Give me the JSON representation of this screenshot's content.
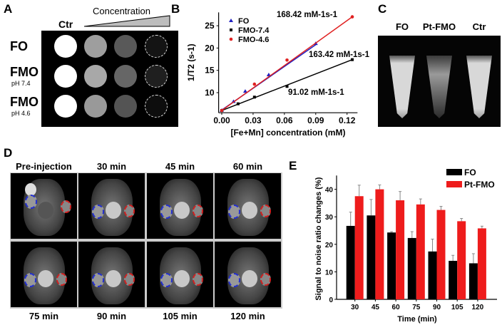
{
  "panels": {
    "A": {
      "label": "A",
      "gradient_label": "Concentration",
      "control_label": "Ctr",
      "rows": [
        {
          "name": "FO",
          "sub": "",
          "intensities": [
            1.0,
            0.62,
            0.35,
            0.08
          ]
        },
        {
          "name": "FMO",
          "sub": "pH 7.4",
          "intensities": [
            1.0,
            0.66,
            0.4,
            0.12
          ]
        },
        {
          "name": "FMO",
          "sub": "pH 4.6",
          "intensities": [
            1.0,
            0.6,
            0.33,
            0.05
          ]
        }
      ]
    },
    "C": {
      "label": "C",
      "tubes": [
        "FO",
        "Pt-FMO",
        "Ctr"
      ]
    },
    "D": {
      "label": "D",
      "top_titles": [
        "Pre-injection",
        "30 min",
        "45 min",
        "60 min"
      ],
      "bottom_titles": [
        "75 min",
        "90 min",
        "105 min",
        "120 min"
      ],
      "roi_colors": {
        "FO": "#2430d0",
        "Pt-FMO": "#d02020"
      }
    },
    "B": {
      "label": "B"
    },
    "E": {
      "label": "E"
    }
  },
  "chart_data": [
    {
      "panel": "B",
      "type": "scatter",
      "xlabel": "[Fe+Mn] concentration (mM)",
      "ylabel": "1/T2 (s-1)",
      "xlim": [
        -0.003,
        0.13
      ],
      "ylim": [
        5.5,
        28
      ],
      "xticks": [
        "0.00",
        "0.03",
        "0.06",
        "0.09",
        "0.12"
      ],
      "yticks": [
        "10",
        "15",
        "20",
        "25"
      ],
      "legend": "top-left",
      "series": [
        {
          "name": "FO",
          "color": "#2020c0",
          "marker": "triangle",
          "x": [
            0,
            0.0113,
            0.0225,
            0.045,
            0.09
          ],
          "y": [
            6.0,
            8.0,
            10.3,
            14.0,
            21.0
          ],
          "fit": [
            [
              0,
              6.1
            ],
            [
              0.091,
              20.9
            ]
          ],
          "annotation": "163.42 mM-1s-1"
        },
        {
          "name": "FMO-7.4",
          "color": "#000000",
          "marker": "square",
          "x": [
            0,
            0.0156,
            0.0313,
            0.0625,
            0.125
          ],
          "y": [
            6.0,
            7.5,
            9.0,
            11.4,
            17.4
          ],
          "fit": [
            [
              0,
              6.0
            ],
            [
              0.125,
              17.4
            ]
          ],
          "annotation": "91.02 mM-1s-1"
        },
        {
          "name": "FMO-4.6",
          "color": "#e02020",
          "marker": "circle",
          "x": [
            0,
            0.0313,
            0.0625,
            0.125
          ],
          "y": [
            6.0,
            11.9,
            17.3,
            27.0
          ],
          "fit": [
            [
              0,
              6.0
            ],
            [
              0.125,
              27.0
            ]
          ],
          "annotation": "168.42 mM-1s-1"
        }
      ]
    },
    {
      "panel": "E",
      "type": "bar",
      "xlabel": "Time (min)",
      "ylabel": "Signal to noise ratio changes (%)",
      "ylim": [
        0,
        45
      ],
      "yticks": [
        "0",
        "10",
        "20",
        "30",
        "40"
      ],
      "categories": [
        "30",
        "45",
        "60",
        "75",
        "90",
        "105",
        "120"
      ],
      "legend": "top-right",
      "series": [
        {
          "name": "FO",
          "color": "#000000",
          "values": [
            26.7,
            30.5,
            24.3,
            22.3,
            17.4,
            14.0,
            13.1
          ],
          "errors": [
            5.0,
            5.8,
            0.3,
            2.3,
            4.5,
            2.0,
            3.5
          ]
        },
        {
          "name": "Pt-FMO",
          "color": "#ee1c1c",
          "values": [
            37.5,
            40.0,
            36.0,
            34.5,
            32.5,
            28.4,
            25.8
          ],
          "errors": [
            4.0,
            1.6,
            3.2,
            2.0,
            1.3,
            1.0,
            0.8
          ]
        }
      ]
    }
  ]
}
